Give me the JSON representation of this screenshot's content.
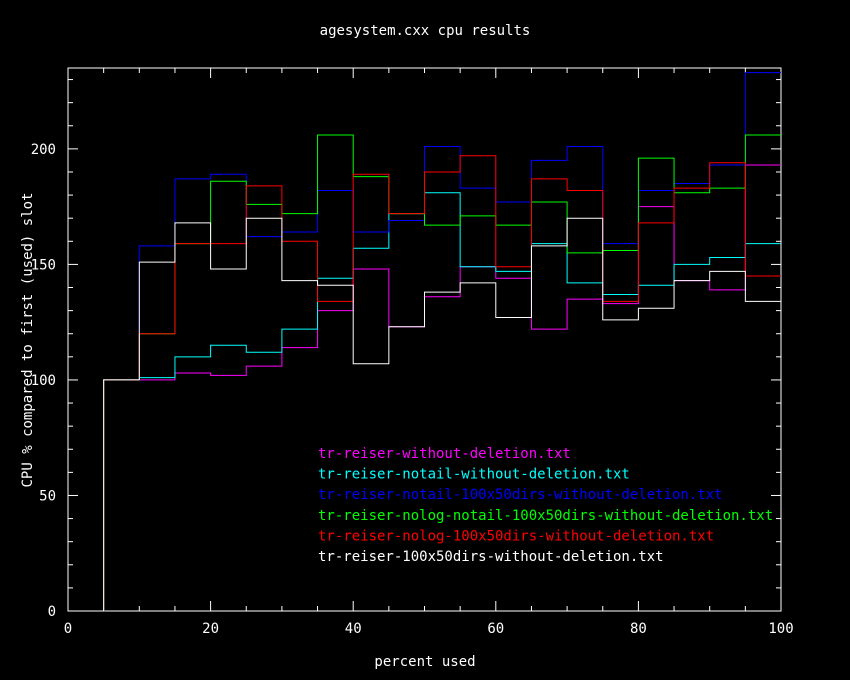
{
  "chart_data": {
    "type": "line",
    "title": "agesystem.cxx cpu results",
    "xlabel": "percent used",
    "ylabel": "CPU % compared to first (used) slot",
    "xlim": [
      0,
      100
    ],
    "ylim": [
      0,
      235
    ],
    "x_ticks": [
      "0",
      "20",
      "40",
      "60",
      "80",
      "100"
    ],
    "y_ticks": [
      "0",
      "50",
      "100",
      "150",
      "200"
    ],
    "step": "histogram",
    "x": [
      0,
      5,
      10,
      15,
      20,
      25,
      30,
      35,
      40,
      45,
      50,
      55,
      60,
      65,
      70,
      75,
      80,
      85,
      90,
      95
    ],
    "series": [
      {
        "name": "tr-reiser-without-deletion.txt",
        "color": "#ff00ff",
        "values": [
          0,
          100,
          100,
          103,
          102,
          106,
          114,
          130,
          148,
          123,
          136,
          149,
          144,
          122,
          135,
          133,
          175,
          143,
          139,
          193
        ]
      },
      {
        "name": "tr-reiser-notail-without-deletion.txt",
        "color": "#00ffff",
        "values": [
          0,
          100,
          101,
          110,
          115,
          112,
          122,
          144,
          157,
          172,
          181,
          149,
          147,
          159,
          142,
          137,
          141,
          150,
          153,
          159
        ]
      },
      {
        "name": "tr-reiser-notail-100x50dirs-without-deletion.txt",
        "color": "#0000ff",
        "values": [
          0,
          100,
          158,
          187,
          189,
          162,
          164,
          182,
          164,
          169,
          201,
          183,
          177,
          195,
          201,
          159,
          182,
          185,
          193,
          233
        ]
      },
      {
        "name": "tr-reiser-nolog-notail-100x50dirs-without-deletion.txt",
        "color": "#00ff00",
        "values": [
          0,
          100,
          120,
          159,
          186,
          176,
          172,
          206,
          188,
          172,
          167,
          171,
          167,
          177,
          155,
          156,
          196,
          181,
          183,
          206
        ]
      },
      {
        "name": "tr-reiser-nolog-100x50dirs-without-deletion.txt",
        "color": "#ff0000",
        "values": [
          0,
          100,
          120,
          159,
          159,
          184,
          160,
          134,
          189,
          172,
          190,
          197,
          149,
          187,
          182,
          134,
          168,
          183,
          194,
          145
        ]
      },
      {
        "name": "tr-reiser-100x50dirs-without-deletion.txt",
        "color": "#ffffff",
        "values": [
          0,
          100,
          151,
          168,
          148,
          170,
          143,
          141,
          107,
          123,
          138,
          142,
          127,
          158,
          170,
          126,
          131,
          143,
          147,
          134
        ]
      }
    ],
    "legend": "inside-bottom-center",
    "grid": false
  }
}
